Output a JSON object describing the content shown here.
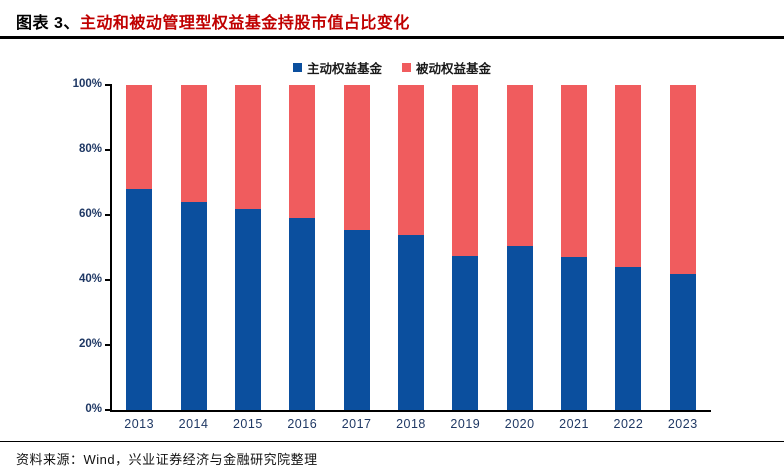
{
  "header": {
    "prefix": "图表 3、",
    "title": "主动和被动管理型权益基金持股市值占比变化"
  },
  "footer": {
    "source": "资料来源：Wind，兴业证券经济与金融研究院整理"
  },
  "colors": {
    "active_blue": "#0b4f9e",
    "passive_red": "#f05c5e",
    "title_red": "#c00000",
    "axis_text_navy": "#1f3864",
    "axis_line": "#000000"
  },
  "chart_data": {
    "type": "bar",
    "stacked": true,
    "percent_stacked": true,
    "title": "主动和被动管理型权益基金持股市值占比变化",
    "xlabel": "",
    "ylabel": "",
    "ylim": [
      0,
      100
    ],
    "grid": false,
    "legend_position": "top",
    "y_ticks": [
      "0%",
      "20%",
      "40%",
      "60%",
      "80%",
      "100%"
    ],
    "categories": [
      "2013",
      "2014",
      "2015",
      "2016",
      "2017",
      "2018",
      "2019",
      "2020",
      "2021",
      "2022",
      "2023"
    ],
    "series": [
      {
        "name": "主动权益基金",
        "color": "#0b4f9e",
        "values": [
          68,
          64,
          62,
          59,
          55.5,
          54,
          47.5,
          50.5,
          47,
          44,
          42
        ]
      },
      {
        "name": "被动权益基金",
        "color": "#f05c5e",
        "values": [
          32,
          36,
          38,
          41,
          44.5,
          46,
          52.5,
          49.5,
          53,
          56,
          58
        ]
      }
    ]
  }
}
